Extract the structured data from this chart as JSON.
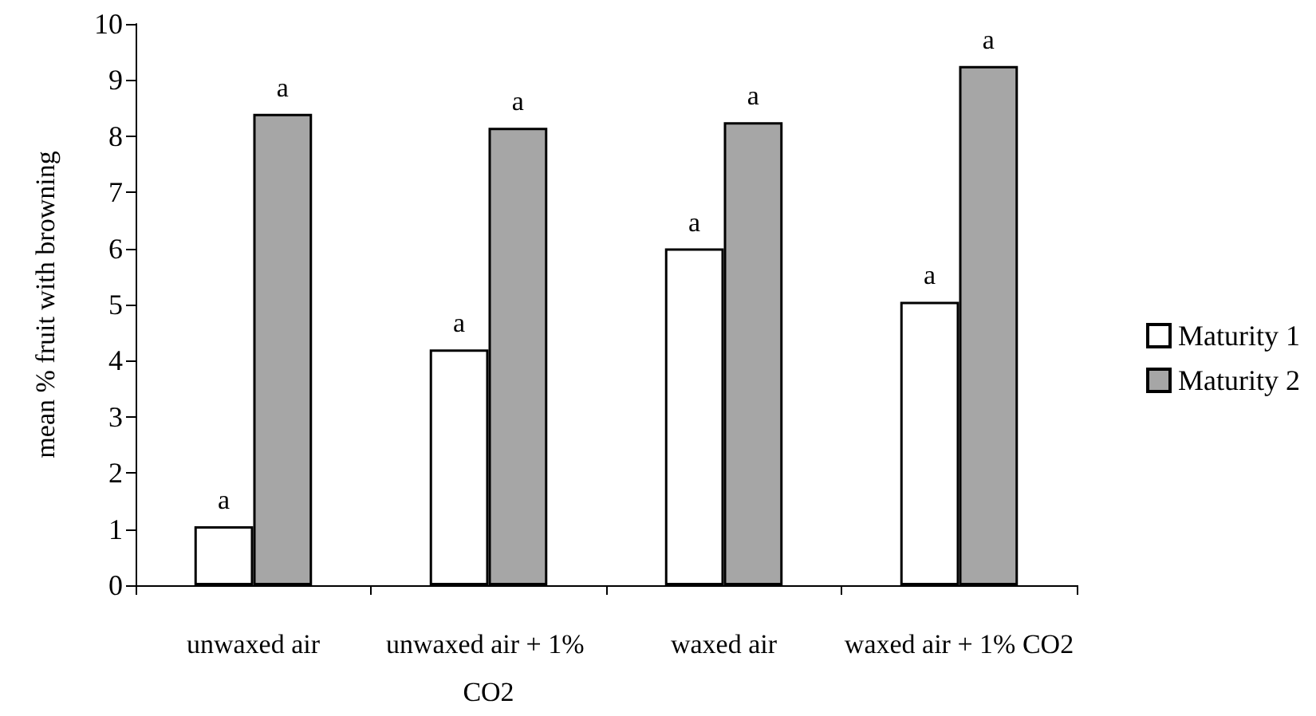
{
  "chart_data": {
    "type": "bar",
    "ylabel": "mean % fruit with browning",
    "categories": [
      "unwaxed air",
      "unwaxed air + 1% CO2",
      "waxed air",
      "waxed air + 1% CO2"
    ],
    "series": [
      {
        "name": "Maturity 1",
        "color": "#ffffff",
        "values": [
          1.05,
          4.2,
          6.0,
          5.05
        ],
        "value_labels": [
          "a",
          "a",
          "a",
          "a"
        ]
      },
      {
        "name": "Maturity 2",
        "color": "#a6a6a6",
        "values": [
          8.4,
          8.15,
          8.25,
          9.25
        ],
        "value_labels": [
          "a",
          "a",
          "a",
          "a"
        ]
      }
    ],
    "ylim": [
      0,
      10
    ],
    "yticks": [
      0,
      1,
      2,
      3,
      4,
      5,
      6,
      7,
      8,
      9,
      10
    ],
    "grid": false,
    "legend": "right"
  }
}
